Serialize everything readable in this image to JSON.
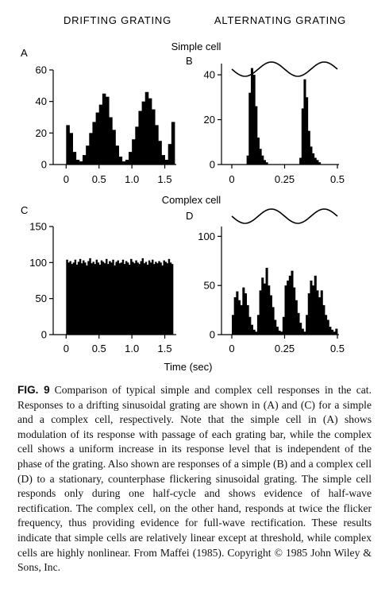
{
  "headers": {
    "left": "DRIFTING GRATING",
    "right": "ALTERNATING GRATING",
    "simple_row": "Simple cell",
    "complex_row": "Complex cell"
  },
  "caption": {
    "label": "FIG. 9",
    "text": "Comparison of typical simple and complex cell responses in the cat. Responses to a drifting sinusoidal grating are shown in (A) and (C) for a simple and a complex cell, respectively. Note that the simple cell in (A) shows modulation of its response with passage of each grating bar, while the complex cell shows a uniform increase in its response level that is independent of the phase of the grating. Also shown are responses of a simple (B) and a complex cell (D) to a stationary, counterphase flickering sinusoidal grating. The simple cell responds only during one half-cycle and shows evidence of half-wave rectification. The complex cell, on the other hand, responds at twice the flicker frequency, thus providing evidence for full-wave rectification. These results indicate that simple cells are relatively linear except at threshold, while complex cells are highly nonlinear. From Maffei (1985). Copyright © 1985 John Wiley & Sons, Inc."
  },
  "chart_data": [
    {
      "panel": "A",
      "type": "bar",
      "xlabel": "",
      "ylabel": "",
      "xlim": [
        -0.04,
        1.65
      ],
      "ylim": [
        0,
        60
      ],
      "xticks": [
        0,
        0.5,
        1.0,
        1.5
      ],
      "xtick_labels": [
        "0",
        "0.5",
        "1.0",
        "1.5"
      ],
      "yticks": [
        0,
        20,
        40,
        60
      ],
      "ytick_labels": [
        "0",
        "20",
        "40",
        "60"
      ],
      "stimulus_trace": false,
      "series": [
        {
          "bin_width": 0.05,
          "x_start": 0.0,
          "values": [
            25,
            20,
            8,
            3,
            2,
            6,
            12,
            20,
            27,
            33,
            38,
            45,
            43,
            30,
            22,
            12,
            5,
            2,
            3,
            8,
            16,
            24,
            34,
            40,
            46,
            42,
            35,
            25,
            15,
            6,
            3,
            13,
            27
          ]
        }
      ]
    },
    {
      "panel": "B",
      "type": "bar",
      "xlabel": "",
      "ylabel": "",
      "xlim": [
        0,
        0.5
      ],
      "ylim": [
        0,
        45
      ],
      "xticks": [
        0,
        0.25,
        0.5
      ],
      "xtick_labels": [
        "0",
        "0.25",
        "0.5"
      ],
      "yticks": [
        0,
        20,
        40
      ],
      "ytick_labels": [
        "0",
        "20",
        "40"
      ],
      "stimulus_trace": true,
      "series": [
        {
          "bin_width": 0.01,
          "x_start": 0.0,
          "values": [
            0,
            0,
            0,
            0,
            0,
            0,
            0,
            4,
            32,
            43,
            40,
            26,
            12,
            7,
            4,
            2,
            1,
            0,
            0,
            0,
            0,
            0,
            0,
            0,
            0,
            0,
            0,
            0,
            0,
            0,
            0,
            0,
            3,
            25,
            38,
            30,
            15,
            8,
            5,
            3,
            2,
            1,
            0,
            0,
            0,
            0,
            0,
            0,
            0,
            0
          ]
        }
      ]
    },
    {
      "panel": "C",
      "type": "bar",
      "xlabel": "",
      "ylabel": "",
      "xlim": [
        -0.04,
        1.65
      ],
      "ylim": [
        0,
        150
      ],
      "xticks": [
        0,
        0.5,
        1.0,
        1.5
      ],
      "xtick_labels": [
        "0",
        "0.5",
        "1.0",
        "1.5"
      ],
      "yticks": [
        0,
        50,
        100,
        150
      ],
      "ytick_labels": [
        "0",
        "50",
        "100",
        "150"
      ],
      "stimulus_trace": false,
      "series": [
        {
          "bin_width": 0.025,
          "x_start": 0.0,
          "values": [
            104,
            100,
            102,
            98,
            100,
            104,
            97,
            101,
            105,
            99,
            103,
            100,
            96,
            102,
            106,
            99,
            101,
            98,
            104,
            100,
            97,
            103,
            101,
            99,
            105,
            98,
            102,
            100,
            104,
            96,
            101,
            103,
            99,
            100,
            104,
            98,
            102,
            100,
            97,
            105,
            101,
            99,
            103,
            100,
            98,
            102,
            106,
            99,
            101,
            97,
            103,
            100,
            104,
            98,
            101,
            99,
            102,
            100,
            96,
            103,
            101,
            99,
            105,
            100,
            98
          ]
        }
      ]
    },
    {
      "panel": "D",
      "type": "bar",
      "xlabel": "Time (sec)",
      "ylabel": "",
      "xlim": [
        0,
        0.5
      ],
      "ylim": [
        0,
        110
      ],
      "xticks": [
        0,
        0.25,
        0.5
      ],
      "xtick_labels": [
        "0",
        "0.25",
        "0.5"
      ],
      "yticks": [
        0,
        50,
        100
      ],
      "ytick_labels": [
        "0",
        "50",
        "100"
      ],
      "stimulus_trace": true,
      "series": [
        {
          "bin_width": 0.01,
          "x_start": 0.0,
          "values": [
            20,
            38,
            44,
            35,
            30,
            48,
            42,
            30,
            18,
            10,
            5,
            3,
            20,
            45,
            58,
            52,
            68,
            50,
            40,
            28,
            15,
            8,
            4,
            3,
            18,
            50,
            55,
            60,
            65,
            48,
            35,
            22,
            12,
            6,
            3,
            20,
            42,
            55,
            50,
            60,
            45,
            38,
            45,
            30,
            20,
            15,
            8,
            5,
            3,
            6
          ]
        }
      ]
    }
  ]
}
